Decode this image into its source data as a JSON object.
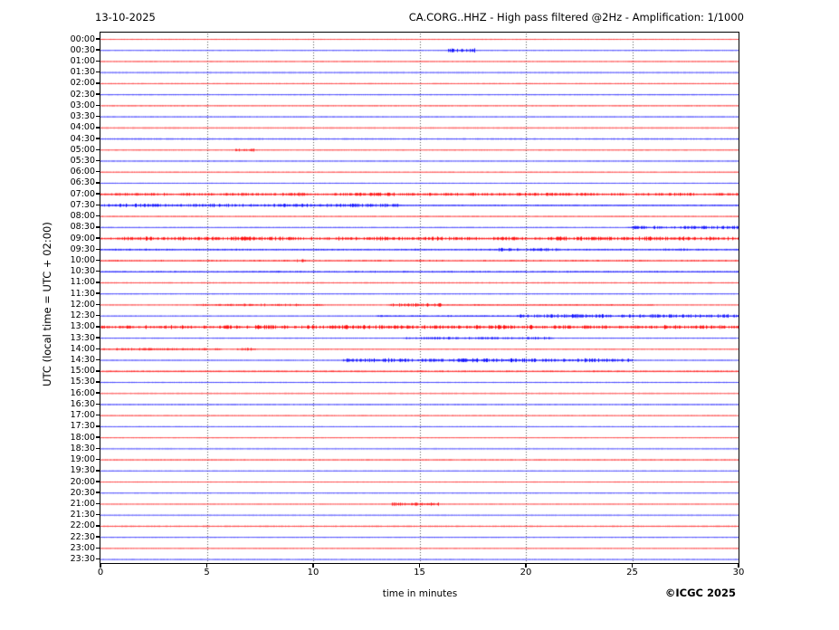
{
  "header": {
    "date": "13-10-2025",
    "title": "CA.CORG..HHZ - High pass filtered @2Hz - Amplification: 1/1000"
  },
  "footer": {
    "copyright": "©ICGC 2025"
  },
  "chart_data": {
    "type": "line",
    "subtype": "helicorder-seismogram",
    "title": "CA.CORG..HHZ - High pass filtered @2Hz - Amplification: 1/1000",
    "date": "13-10-2025",
    "xlabel": "time in minutes",
    "ylabel": "UTC (local time = UTC + 02:00)",
    "x_range": [
      0,
      30
    ],
    "x_ticks": [
      0,
      5,
      10,
      15,
      20,
      25,
      30
    ],
    "grid": "vertical dotted lines every 5 minutes",
    "row_interval_minutes": 30,
    "colors": {
      "even_rows": "#ff0000",
      "odd_rows": "#0000ff",
      "grid": "#555555"
    },
    "rows": [
      {
        "label": "00:00",
        "color": "red",
        "base": 0.6,
        "events": []
      },
      {
        "label": "00:30",
        "color": "blue",
        "base": 0.6,
        "events": [
          [
            16.3,
            17.6,
            2.2
          ]
        ]
      },
      {
        "label": "01:00",
        "color": "red",
        "base": 0.7,
        "events": []
      },
      {
        "label": "01:30",
        "color": "blue",
        "base": 1.3,
        "soft": true,
        "events": []
      },
      {
        "label": "02:00",
        "color": "red",
        "base": 0.7,
        "events": []
      },
      {
        "label": "02:30",
        "color": "blue",
        "base": 0.7,
        "events": []
      },
      {
        "label": "03:00",
        "color": "red",
        "base": 0.8,
        "events": []
      },
      {
        "label": "03:30",
        "color": "blue",
        "base": 0.7,
        "events": []
      },
      {
        "label": "04:00",
        "color": "red",
        "base": 1.3,
        "soft": true,
        "events": []
      },
      {
        "label": "04:30",
        "color": "blue",
        "base": 0.9,
        "events": []
      },
      {
        "label": "05:00",
        "color": "red",
        "base": 0.7,
        "events": [
          [
            6.3,
            7.2,
            1.8
          ]
        ]
      },
      {
        "label": "05:30",
        "color": "blue",
        "base": 0.7,
        "events": []
      },
      {
        "label": "06:00",
        "color": "red",
        "base": 0.7,
        "events": []
      },
      {
        "label": "06:30",
        "color": "blue",
        "base": 0.6,
        "events": []
      },
      {
        "label": "07:00",
        "color": "red",
        "base": 1.0,
        "events": [
          [
            0,
            30,
            1.6
          ]
        ]
      },
      {
        "label": "07:30",
        "color": "blue",
        "base": 0.9,
        "events": [
          [
            0,
            14,
            1.8
          ],
          [
            14,
            30,
            0.7
          ]
        ]
      },
      {
        "label": "08:00",
        "color": "red",
        "base": 0.8,
        "events": []
      },
      {
        "label": "08:30",
        "color": "blue",
        "base": 0.7,
        "events": [
          [
            24.8,
            30,
            1.7
          ]
        ]
      },
      {
        "label": "09:00",
        "color": "red",
        "base": 1.0,
        "events": [
          [
            0,
            30,
            2.0
          ]
        ]
      },
      {
        "label": "09:30",
        "color": "blue",
        "base": 0.9,
        "events": [
          [
            0,
            30,
            1.0
          ],
          [
            18.5,
            21.5,
            1.6
          ],
          [
            26.3,
            27.6,
            1.4
          ]
        ]
      },
      {
        "label": "10:00",
        "color": "red",
        "base": 1.0,
        "soft": true,
        "events": [
          [
            0,
            30,
            0.9
          ],
          [
            9.2,
            9.7,
            1.6
          ]
        ]
      },
      {
        "label": "10:30",
        "color": "blue",
        "base": 0.9,
        "events": [
          [
            0,
            30,
            0.8
          ]
        ]
      },
      {
        "label": "11:00",
        "color": "red",
        "base": 0.8,
        "events": []
      },
      {
        "label": "11:30",
        "color": "blue",
        "base": 0.7,
        "events": []
      },
      {
        "label": "12:00",
        "color": "red",
        "base": 0.7,
        "events": [
          [
            4.5,
            10.5,
            1.4
          ],
          [
            13.5,
            16,
            2.0
          ],
          [
            16,
            26,
            0.8
          ]
        ]
      },
      {
        "label": "12:30",
        "color": "blue",
        "base": 0.7,
        "events": [
          [
            13,
            19.5,
            0.9
          ],
          [
            19.5,
            30,
            1.9
          ]
        ]
      },
      {
        "label": "13:00",
        "color": "red",
        "base": 1.0,
        "events": [
          [
            0,
            30,
            2.0
          ]
        ]
      },
      {
        "label": "13:30",
        "color": "blue",
        "base": 0.7,
        "events": [
          [
            14.3,
            21.3,
            1.5
          ]
        ]
      },
      {
        "label": "14:00",
        "color": "red",
        "base": 0.7,
        "events": [
          [
            0,
            5.7,
            1.3
          ],
          [
            6.4,
            7.3,
            1.8
          ]
        ]
      },
      {
        "label": "14:30",
        "color": "blue",
        "base": 0.7,
        "events": [
          [
            11.4,
            25,
            2.0
          ]
        ]
      },
      {
        "label": "15:00",
        "color": "red",
        "base": 0.9,
        "events": [
          [
            0,
            30,
            0.8
          ]
        ]
      },
      {
        "label": "15:30",
        "color": "blue",
        "base": 0.7,
        "events": []
      },
      {
        "label": "16:00",
        "color": "red",
        "base": 1.2,
        "soft": true,
        "events": []
      },
      {
        "label": "16:30",
        "color": "blue",
        "base": 0.8,
        "events": []
      },
      {
        "label": "17:00",
        "color": "red",
        "base": 0.7,
        "events": []
      },
      {
        "label": "17:30",
        "color": "blue",
        "base": 0.6,
        "events": []
      },
      {
        "label": "18:00",
        "color": "red",
        "base": 0.6,
        "events": []
      },
      {
        "label": "18:30",
        "color": "blue",
        "base": 1.1,
        "soft": true,
        "events": []
      },
      {
        "label": "19:00",
        "color": "red",
        "base": 0.9,
        "events": []
      },
      {
        "label": "19:30",
        "color": "blue",
        "base": 0.6,
        "events": []
      },
      {
        "label": "20:00",
        "color": "red",
        "base": 0.6,
        "events": []
      },
      {
        "label": "20:30",
        "color": "blue",
        "base": 0.6,
        "events": []
      },
      {
        "label": "21:00",
        "color": "red",
        "base": 0.6,
        "events": [
          [
            13.7,
            15.9,
            1.8
          ]
        ]
      },
      {
        "label": "21:30",
        "color": "blue",
        "base": 1.1,
        "soft": true,
        "events": []
      },
      {
        "label": "22:00",
        "color": "red",
        "base": 0.9,
        "events": []
      },
      {
        "label": "22:30",
        "color": "blue",
        "base": 0.6,
        "events": []
      },
      {
        "label": "23:00",
        "color": "red",
        "base": 0.6,
        "events": []
      },
      {
        "label": "23:30",
        "color": "blue",
        "base": 0.6,
        "events": []
      }
    ]
  }
}
